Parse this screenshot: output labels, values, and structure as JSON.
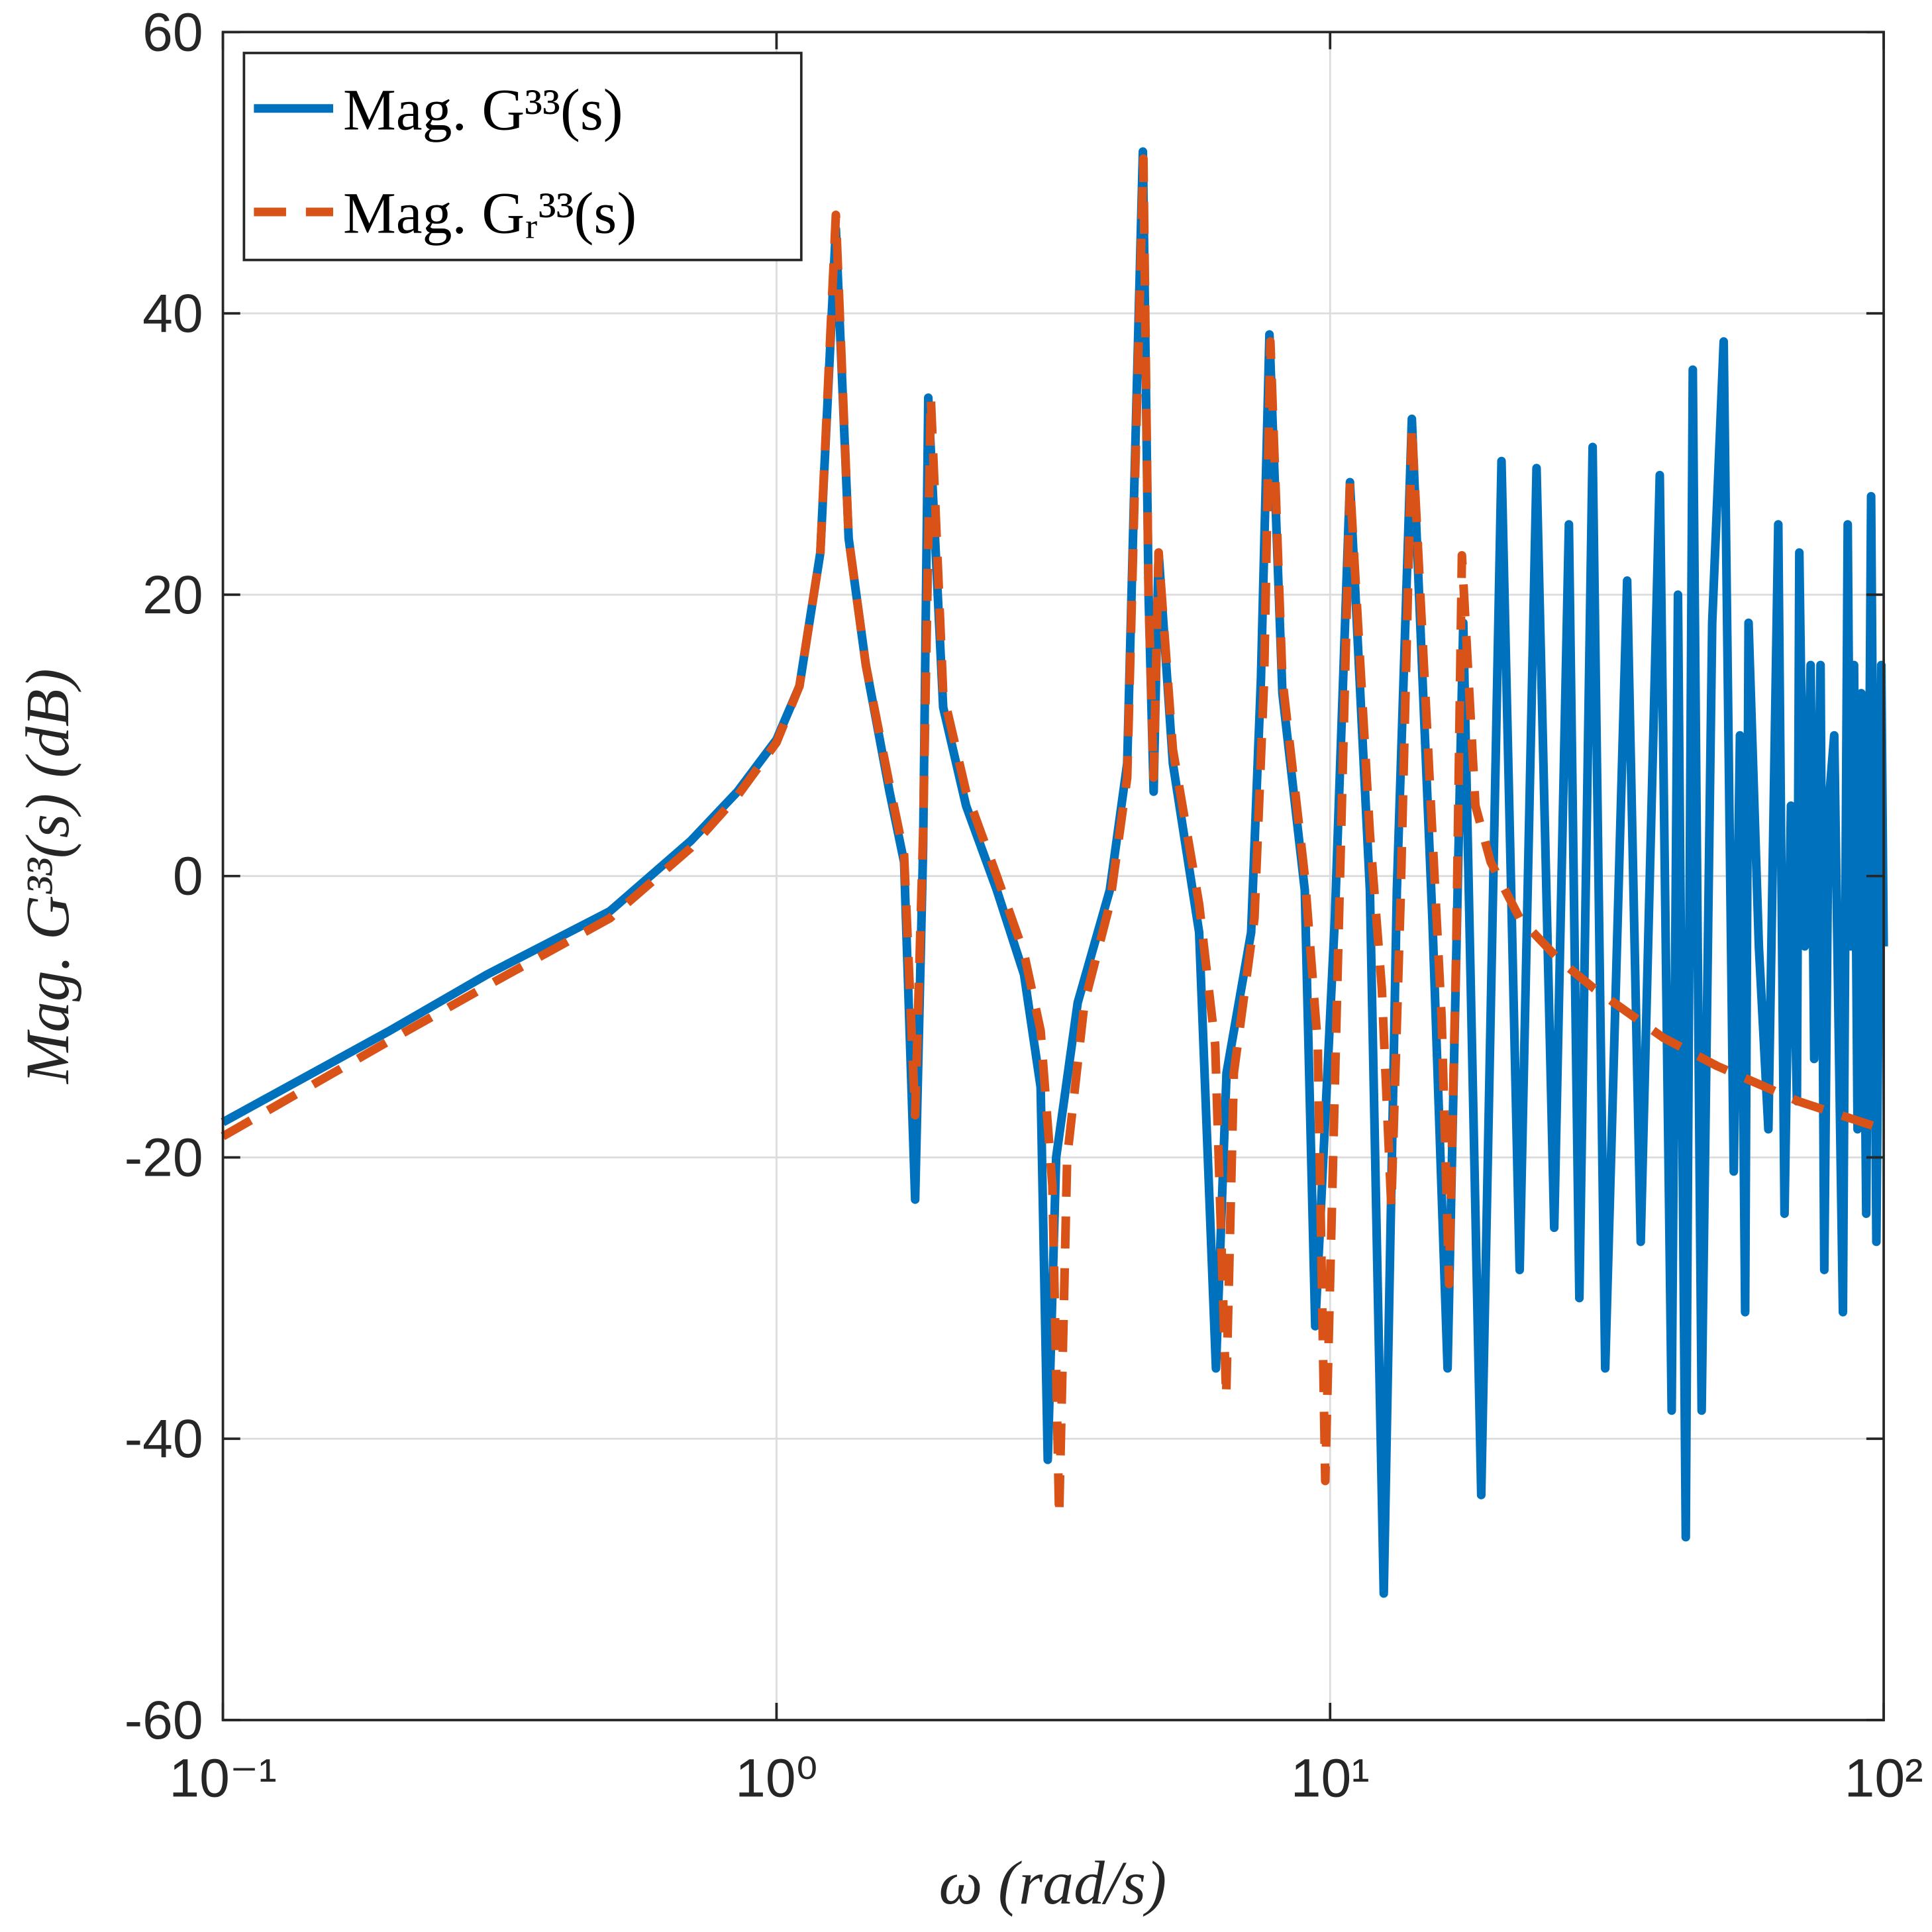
{
  "chart_data": {
    "type": "line",
    "xlabel": "ω (rad/s)",
    "ylabel": "Mag. G³³(s) (dB)",
    "xscale": "log",
    "xlim": [
      0.1,
      100
    ],
    "ylim": [
      -60,
      60
    ],
    "xticks": [
      {
        "value": 0.1,
        "label": "10⁻¹"
      },
      {
        "value": 1,
        "label": "10⁰"
      },
      {
        "value": 10,
        "label": "10¹"
      },
      {
        "value": 100,
        "label": "10²"
      }
    ],
    "yticks": [
      -60,
      -40,
      -20,
      0,
      20,
      40,
      60
    ],
    "grid": true,
    "legend": "upper left",
    "series": [
      {
        "name": "Mag. G³³(s)",
        "color": "#0072bd",
        "style": "solid",
        "x": [
          0.1,
          0.2,
          0.3,
          0.5,
          0.7,
          0.85,
          1.0,
          1.1,
          1.2,
          1.28,
          1.35,
          1.45,
          1.6,
          1.7,
          1.78,
          1.84,
          1.88,
          2.0,
          2.2,
          2.5,
          2.8,
          3.0,
          3.09,
          3.2,
          3.5,
          4.0,
          4.3,
          4.59,
          4.7,
          4.8,
          4.9,
          5.2,
          5.8,
          6.22,
          6.5,
          7.2,
          7.5,
          7.77,
          8.2,
          9.0,
          9.4,
          10.2,
          10.86,
          11.8,
          12.5,
          13.2,
          14.05,
          15.3,
          16.3,
          17.4,
          18.75,
          20.4,
          22.0,
          23.6,
          25.4,
          27.0,
          28.2,
          29.8,
          31.4,
          34.4,
          36.4,
          39.4,
          41.4,
          42.5,
          43.9,
          45.2,
          46.9,
          49,
          51.4,
          53.6,
          55,
          56.2,
          57,
          59.5,
          61.9,
          64.5,
          66.2,
          68,
          69.7,
          70.4,
          72,
          73.8,
          74.9,
          76.9,
          78.1,
          79.5,
          81.4,
          84.4,
          86.1,
          87.2,
          88.4,
          89.7,
          91.1,
          93.0,
          94.9,
          97.0,
          99.0,
          100
        ],
        "values": [
          -17.5,
          -11,
          -7,
          -2.5,
          2.5,
          6,
          9.7,
          13.5,
          23,
          46,
          24,
          15,
          6,
          1,
          -23,
          2,
          34,
          12,
          5,
          -1,
          -7,
          -15,
          -41.5,
          -20,
          -9,
          -1,
          8,
          51.5,
          20,
          6,
          23,
          8,
          -4,
          -35,
          -14,
          -4,
          14,
          38.5,
          13,
          -1,
          -32,
          -3,
          28,
          -1,
          -51,
          -1,
          32.5,
          -3,
          -35,
          18,
          -44,
          29.5,
          -28,
          29,
          -25,
          25,
          -30,
          30.5,
          -35,
          21,
          -26,
          28.5,
          -38,
          20,
          -47,
          36,
          -38,
          18,
          38,
          -21,
          10,
          -31,
          18,
          -5,
          -18,
          25,
          -24,
          5,
          -16,
          23,
          -5,
          15,
          -13,
          15,
          -28,
          5,
          10,
          -31,
          25,
          -5,
          15,
          -18,
          13,
          -24,
          27,
          -26,
          15,
          -5
        ]
      },
      {
        "name": "Mag. Gᵣ³³(s)",
        "color": "#d95319",
        "style": "dashed",
        "x": [
          0.1,
          0.2,
          0.3,
          0.5,
          0.7,
          0.85,
          1.0,
          1.1,
          1.2,
          1.28,
          1.35,
          1.45,
          1.6,
          1.7,
          1.78,
          1.84,
          1.9,
          2.0,
          2.2,
          2.5,
          2.8,
          3.0,
          3.15,
          3.24,
          3.35,
          3.6,
          4.0,
          4.3,
          4.6,
          4.7,
          4.8,
          4.9,
          5.2,
          5.8,
          6.2,
          6.49,
          6.7,
          7.3,
          7.6,
          7.8,
          8.2,
          9.0,
          9.5,
          9.8,
          10.3,
          10.86,
          11.8,
          12.4,
          12.9,
          13.4,
          14.05,
          15.3,
          15.9,
          16.4,
          16.9,
          17.3,
          18.3,
          19.5,
          22,
          26,
          30,
          40,
          50,
          70,
          100
        ],
        "values": [
          -18.5,
          -11.7,
          -7.8,
          -3,
          2,
          5.7,
          9.5,
          13.5,
          23,
          47,
          24,
          15,
          6.5,
          1.5,
          -17,
          3,
          34,
          13,
          6,
          0,
          -5.5,
          -11,
          -22,
          -45.5,
          -20,
          -9,
          -2,
          7,
          51,
          20,
          7,
          23,
          9,
          -2,
          -12,
          -37,
          -14,
          -3,
          14,
          38,
          14,
          0,
          -12,
          -43,
          -8,
          28,
          3,
          -8,
          -23.5,
          -2,
          32,
          3,
          -10,
          -29,
          -5,
          22.8,
          5,
          1,
          -3,
          -6,
          -8,
          -11.5,
          -13.5,
          -16,
          -18
        ]
      }
    ]
  }
}
